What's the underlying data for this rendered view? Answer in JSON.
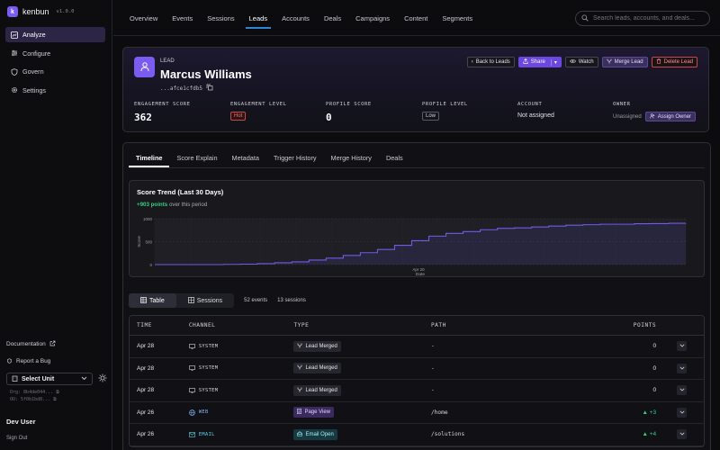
{
  "brand": {
    "name": "kenbun",
    "version": "v1.0.0",
    "logo_letter": "k"
  },
  "sidebar": {
    "items": [
      {
        "label": "Analyze",
        "icon": "analyze-icon"
      },
      {
        "label": "Configure",
        "icon": "configure-icon"
      },
      {
        "label": "Govern",
        "icon": "shield-icon"
      },
      {
        "label": "Settings",
        "icon": "gear-icon"
      }
    ],
    "documentation": "Documentation",
    "report_bug": "Report a Bug",
    "unit_select": "Select Unit",
    "org_id": "Org: 8b4de044...",
    "ou_id": "OU: 5f0b1bd8...",
    "user": "Dev User",
    "sign_out": "Sign Out"
  },
  "topnav": {
    "tabs": [
      "Overview",
      "Events",
      "Sessions",
      "Leads",
      "Accounts",
      "Deals",
      "Campaigns",
      "Content",
      "Segments"
    ],
    "active_tab": "Leads",
    "search_placeholder": "Search leads, accounts, and deals..."
  },
  "lead": {
    "kicker": "LEAD",
    "name": "Marcus Williams",
    "id": "...afce1cfdb5",
    "actions": {
      "back": "Back to Leads",
      "share": "Share",
      "watch": "Watch",
      "merge": "Merge Lead",
      "delete": "Delete Lead"
    },
    "stats": {
      "engagement_score_label": "ENGAGEMENT SCORE",
      "engagement_score": "362",
      "engagement_level_label": "ENGAGEMENT LEVEL",
      "engagement_level": "Hot",
      "profile_score_label": "PROFILE SCORE",
      "profile_score": "0",
      "profile_level_label": "PROFILE LEVEL",
      "profile_level": "Low",
      "account_label": "ACCOUNT",
      "account": "Not assigned",
      "owner_label": "OWNER",
      "owner": "Unassigned",
      "assign_owner": "Assign Owner"
    }
  },
  "detail_tabs": [
    "Timeline",
    "Score Explain",
    "Metadata",
    "Trigger History",
    "Merge History",
    "Deals"
  ],
  "trend": {
    "title": "Score Trend (Last 30 Days)",
    "delta": "+903 points",
    "delta_suffix": "over this period"
  },
  "chart_data": {
    "type": "area",
    "ylabel": "Score",
    "xlabel": "Date",
    "y_ticks": [
      "1000",
      "500",
      "0"
    ],
    "x_ticks": [
      "Apr 20"
    ],
    "ylim": [
      0,
      1000
    ],
    "color": "#6f5be6",
    "values": [
      0,
      0,
      0,
      0,
      5,
      10,
      20,
      40,
      60,
      100,
      140,
      200,
      260,
      330,
      420,
      520,
      620,
      680,
      720,
      760,
      790,
      800,
      820,
      840,
      860,
      870,
      880,
      880,
      890,
      893,
      900,
      903
    ]
  },
  "view": {
    "table": "Table",
    "sessions": "Sessions",
    "events_count": "52 events",
    "sessions_count": "13 sessions"
  },
  "events": {
    "headers": {
      "time": "TIME",
      "channel": "CHANNEL",
      "type": "TYPE",
      "path": "PATH",
      "points": "POINTS"
    },
    "rows": [
      {
        "time": "Apr 28",
        "channel": "SYSTEM",
        "type": "Lead Merged",
        "path": "-",
        "points": "0"
      },
      {
        "time": "Apr 28",
        "channel": "SYSTEM",
        "type": "Lead Merged",
        "path": "-",
        "points": "0"
      },
      {
        "time": "Apr 28",
        "channel": "SYSTEM",
        "type": "Lead Merged",
        "path": "-",
        "points": "0"
      },
      {
        "time": "Apr 26",
        "channel": "WEB",
        "type": "Page View",
        "path": "/home",
        "points": "+3"
      },
      {
        "time": "Apr 26",
        "channel": "EMAIL",
        "type": "Email Open",
        "path": "/solutions",
        "points": "+4"
      }
    ]
  }
}
